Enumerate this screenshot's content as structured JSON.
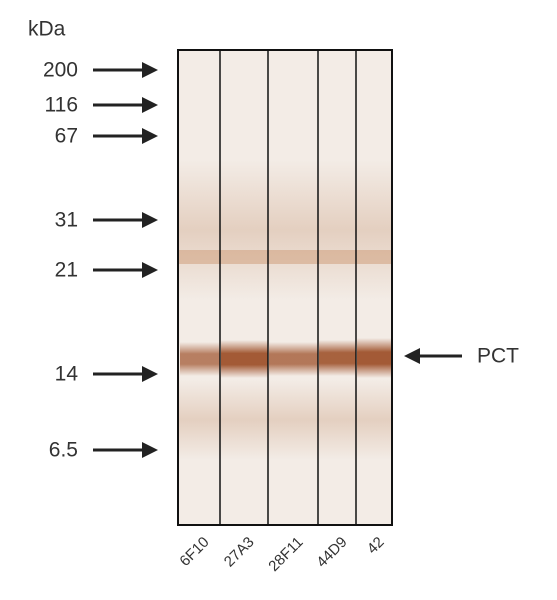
{
  "unit_label": "kDa",
  "markers": [
    "200",
    "116",
    "67",
    "31",
    "21",
    "14",
    "6.5"
  ],
  "lanes": [
    "6F10",
    "27A3",
    "28F11",
    "44D9",
    "42"
  ],
  "band_label": "PCT"
}
